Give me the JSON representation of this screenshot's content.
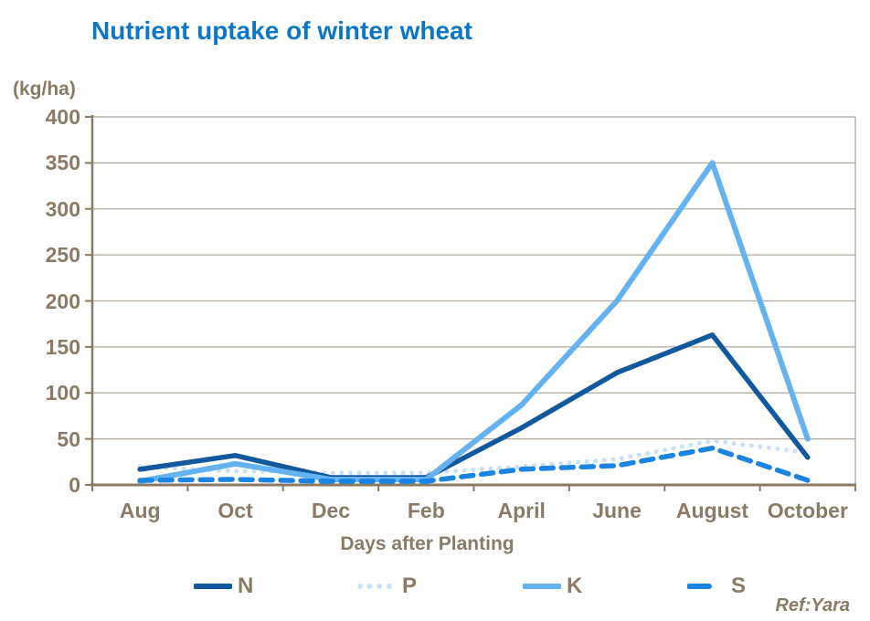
{
  "title": "Nutrient uptake of winter wheat",
  "y_unit_label": "(kg/ha)",
  "x_axis_title": "Days after Planting",
  "ref_text": "Ref:Yara",
  "colors": {
    "title": "#0c76c8",
    "axis_text": "#8a7a66",
    "axis_line": "#8a7a66",
    "grid": "#b0a89d",
    "background": "#ffffff"
  },
  "chart_data": {
    "type": "line",
    "title": "Nutrient uptake of winter wheat",
    "xlabel": "Days after Planting",
    "ylabel": "(kg/ha)",
    "categories": [
      "Aug",
      "Oct",
      "Dec",
      "Feb",
      "April",
      "June",
      "August",
      "October"
    ],
    "series": [
      {
        "name": "N",
        "style": "solid",
        "color": "#11589e",
        "values": [
          17,
          32,
          8,
          8,
          62,
          122,
          163,
          30
        ]
      },
      {
        "name": "P",
        "style": "dotted",
        "color": "#c8e1f8",
        "values": [
          20,
          15,
          13,
          13,
          20,
          28,
          48,
          35
        ]
      },
      {
        "name": "K",
        "style": "solid",
        "color": "#64b2ef",
        "values": [
          4,
          23,
          6,
          6,
          87,
          200,
          350,
          50
        ]
      },
      {
        "name": "S",
        "style": "dashed",
        "color": "#1b83e0",
        "values": [
          5,
          6,
          4,
          4,
          17,
          21,
          40,
          5
        ]
      }
    ],
    "ylim": [
      0,
      400
    ],
    "yticks": [
      0,
      50,
      100,
      150,
      200,
      250,
      300,
      350,
      400
    ],
    "grid": "horizontal",
    "legend_position": "bottom"
  }
}
